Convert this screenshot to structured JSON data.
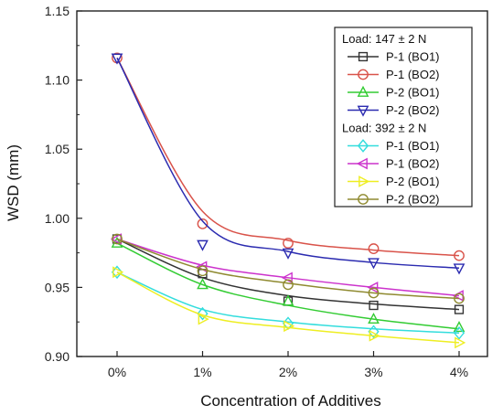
{
  "chart_data": {
    "type": "line",
    "title": "",
    "xlabel": "Concentration of Additives",
    "ylabel": "WSD (mm)",
    "x_categories": [
      "0%",
      "1%",
      "2%",
      "3%",
      "4%"
    ],
    "ylim": [
      0.9,
      1.15
    ],
    "yticks": [
      "0.90",
      "0.95",
      "1.00",
      "1.05",
      "1.10",
      "1.15"
    ],
    "grid": false,
    "legend_position": "top-right",
    "legend_groups": [
      "Load: 147 ± 2 N",
      "Load: 392 ± 2 N"
    ],
    "series": [
      {
        "name": "P-1 (BO1)",
        "group": 0,
        "color": "#333333",
        "marker": "square",
        "values": [
          0.985,
          0.96,
          0.94,
          0.937,
          0.934
        ],
        "fit": [
          0.985,
          0.957,
          0.944,
          0.938,
          0.934
        ]
      },
      {
        "name": "P-1 (BO2)",
        "group": 0,
        "color": "#d9534a",
        "marker": "circle",
        "values": [
          1.116,
          0.996,
          0.982,
          0.978,
          0.973
        ],
        "fit": [
          1.116,
          1.005,
          0.984,
          0.977,
          0.973
        ]
      },
      {
        "name": "P-2 (BO1)",
        "group": 0,
        "color": "#33cc33",
        "marker": "triangle-up",
        "values": [
          0.982,
          0.952,
          0.94,
          0.927,
          0.921
        ],
        "fit": [
          0.982,
          0.952,
          0.937,
          0.927,
          0.92
        ]
      },
      {
        "name": "P-2 (BO2)",
        "group": 0,
        "color": "#2b2bb0",
        "marker": "triangle-down",
        "values": [
          1.116,
          0.981,
          0.975,
          0.968,
          0.964
        ],
        "fit": [
          1.116,
          0.998,
          0.976,
          0.968,
          0.964
        ]
      },
      {
        "name": "P-1 (BO1)",
        "group": 1,
        "color": "#33dddd",
        "marker": "diamond",
        "values": [
          0.961,
          0.931,
          0.924,
          0.918,
          0.917
        ],
        "fit": [
          0.961,
          0.934,
          0.925,
          0.92,
          0.917
        ]
      },
      {
        "name": "P-1 (BO2)",
        "group": 1,
        "color": "#cc33cc",
        "marker": "triangle-left",
        "values": [
          0.985,
          0.965,
          0.957,
          0.95,
          0.944
        ],
        "fit": [
          0.985,
          0.966,
          0.957,
          0.95,
          0.944
        ]
      },
      {
        "name": "P-2 (BO1)",
        "group": 1,
        "color": "#eeee22",
        "marker": "triangle-right",
        "values": [
          0.961,
          0.927,
          0.922,
          0.915,
          0.91
        ],
        "fit": [
          0.961,
          0.93,
          0.921,
          0.915,
          0.91
        ]
      },
      {
        "name": "P-2 (BO2)",
        "group": 1,
        "color": "#8f8a30",
        "marker": "circle",
        "values": [
          0.985,
          0.962,
          0.952,
          0.946,
          0.942
        ],
        "fit": [
          0.985,
          0.963,
          0.953,
          0.946,
          0.942
        ]
      }
    ]
  }
}
